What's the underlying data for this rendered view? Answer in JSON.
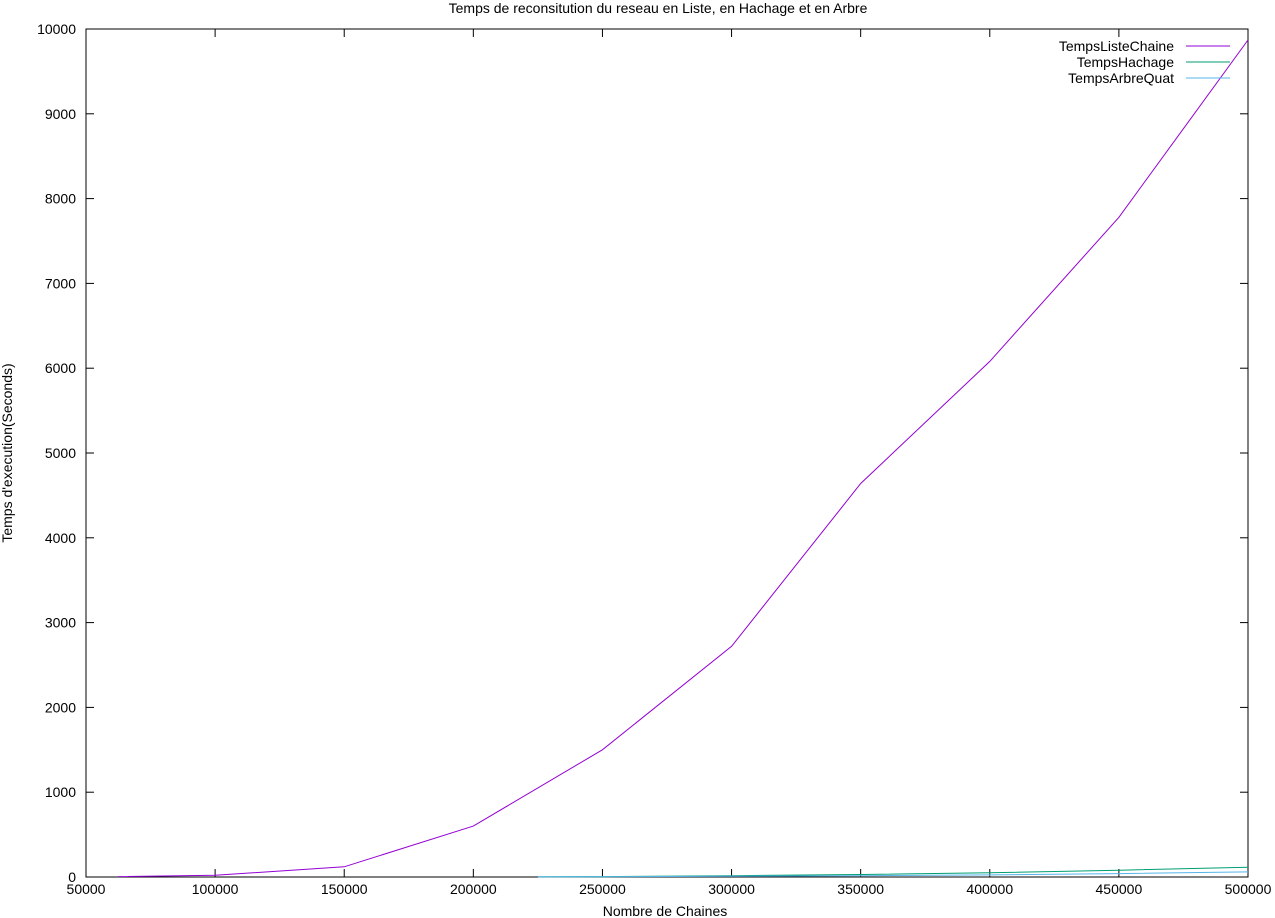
{
  "chart_data": {
    "type": "line",
    "title": "Temps de reconsitution du reseau en Liste, en Hachage et en Arbre",
    "xlabel": "Nombre de Chaines",
    "ylabel": "Temps d'execution(Seconds)",
    "xlim": [
      50000,
      500000
    ],
    "ylim": [
      0,
      10000
    ],
    "xticks": [
      50000,
      100000,
      150000,
      200000,
      250000,
      300000,
      350000,
      400000,
      450000,
      500000
    ],
    "yticks": [
      0,
      1000,
      2000,
      3000,
      4000,
      5000,
      6000,
      7000,
      8000,
      9000,
      10000
    ],
    "grid": false,
    "legend_position": "top-right",
    "series": [
      {
        "name": "TempsListeChaine",
        "color": "#9400d3",
        "x": [
          62500,
          100000,
          150000,
          200000,
          250000,
          300000,
          350000,
          400000,
          450000,
          500000
        ],
        "y": [
          5,
          20,
          120,
          600,
          1500,
          2720,
          4640,
          6080,
          7780,
          9870
        ]
      },
      {
        "name": "TempsHachage",
        "color": "#009e73",
        "x": [
          225000,
          250000,
          300000,
          350000,
          400000,
          450000,
          500000
        ],
        "y": [
          2,
          5,
          15,
          30,
          50,
          80,
          115
        ]
      },
      {
        "name": "TempsArbreQuat",
        "color": "#56b4e9",
        "x": [
          225000,
          250000,
          300000,
          350000,
          400000,
          450000,
          500000
        ],
        "y": [
          1,
          3,
          8,
          15,
          25,
          40,
          60
        ]
      }
    ]
  }
}
